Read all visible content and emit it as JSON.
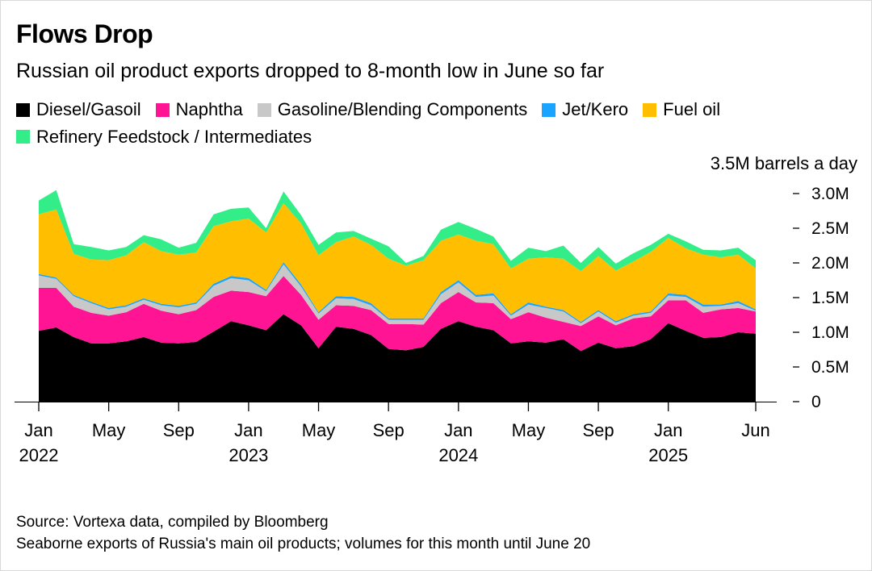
{
  "header": {
    "title": "Flows Drop",
    "subtitle": "Russian oil product exports dropped to 8-month low in June so far"
  },
  "unit_label": "3.5M barrels a day",
  "footer": {
    "source": "Source: Vortexa data, compiled by Bloomberg",
    "note": "Seaborne exports of Russia's main oil products; volumes for this month until June 20"
  },
  "chart_data": {
    "type": "area",
    "stacked": true,
    "x": [
      "2022-01",
      "2022-02",
      "2022-03",
      "2022-04",
      "2022-05",
      "2022-06",
      "2022-07",
      "2022-08",
      "2022-09",
      "2022-10",
      "2022-11",
      "2022-12",
      "2023-01",
      "2023-02",
      "2023-03",
      "2023-04",
      "2023-05",
      "2023-06",
      "2023-07",
      "2023-08",
      "2023-09",
      "2023-10",
      "2023-11",
      "2023-12",
      "2024-01",
      "2024-02",
      "2024-03",
      "2024-04",
      "2024-05",
      "2024-06",
      "2024-07",
      "2024-08",
      "2024-09",
      "2024-10",
      "2024-11",
      "2024-12",
      "2025-01",
      "2025-02",
      "2025-03",
      "2025-04",
      "2025-05",
      "2025-06"
    ],
    "x_tick_labels": [
      {
        "x": "2022-01",
        "line1": "Jan",
        "line2": "2022"
      },
      {
        "x": "2022-05",
        "line1": "May",
        "line2": ""
      },
      {
        "x": "2022-09",
        "line1": "Sep",
        "line2": ""
      },
      {
        "x": "2023-01",
        "line1": "Jan",
        "line2": "2023"
      },
      {
        "x": "2023-05",
        "line1": "May",
        "line2": ""
      },
      {
        "x": "2023-09",
        "line1": "Sep",
        "line2": ""
      },
      {
        "x": "2024-01",
        "line1": "Jan",
        "line2": "2024"
      },
      {
        "x": "2024-05",
        "line1": "May",
        "line2": ""
      },
      {
        "x": "2024-09",
        "line1": "Sep",
        "line2": ""
      },
      {
        "x": "2025-01",
        "line1": "Jan",
        "line2": "2025"
      },
      {
        "x": "2025-06",
        "line1": "Jun",
        "line2": ""
      }
    ],
    "y_ticks": [
      {
        "value": 0,
        "label": "0"
      },
      {
        "value": 0.5,
        "label": "0.5M"
      },
      {
        "value": 1.0,
        "label": "1.0M"
      },
      {
        "value": 1.5,
        "label": "1.5M"
      },
      {
        "value": 2.0,
        "label": "2.0M"
      },
      {
        "value": 2.5,
        "label": "2.5M"
      },
      {
        "value": 3.0,
        "label": "3.0M"
      }
    ],
    "ylim": [
      0,
      3.5
    ],
    "y_axis_side": "right",
    "grid": false,
    "legend_position": "top",
    "series": [
      {
        "name": "Diesel/Gasoil",
        "color": "#000000",
        "values": [
          1.02,
          1.07,
          0.93,
          0.84,
          0.84,
          0.87,
          0.93,
          0.85,
          0.84,
          0.86,
          1.01,
          1.16,
          1.1,
          1.03,
          1.26,
          1.1,
          0.77,
          1.08,
          1.05,
          0.96,
          0.76,
          0.74,
          0.79,
          1.05,
          1.16,
          1.08,
          1.03,
          0.84,
          0.87,
          0.85,
          0.9,
          0.73,
          0.85,
          0.77,
          0.8,
          0.9,
          1.13,
          1.02,
          0.92,
          0.93,
          1.0,
          0.98
        ]
      },
      {
        "name": "Naphtha",
        "color": "#ff1493",
        "values": [
          0.62,
          0.57,
          0.44,
          0.44,
          0.4,
          0.42,
          0.48,
          0.46,
          0.42,
          0.46,
          0.5,
          0.44,
          0.48,
          0.49,
          0.55,
          0.44,
          0.41,
          0.31,
          0.33,
          0.36,
          0.36,
          0.38,
          0.32,
          0.37,
          0.42,
          0.35,
          0.39,
          0.35,
          0.42,
          0.36,
          0.25,
          0.36,
          0.38,
          0.33,
          0.4,
          0.33,
          0.33,
          0.44,
          0.36,
          0.4,
          0.35,
          0.32
        ]
      },
      {
        "name": "Gasoline/Blending Components",
        "color": "#c8c8c8",
        "values": [
          0.18,
          0.13,
          0.15,
          0.14,
          0.09,
          0.08,
          0.06,
          0.08,
          0.1,
          0.09,
          0.16,
          0.18,
          0.17,
          0.07,
          0.17,
          0.12,
          0.09,
          0.1,
          0.1,
          0.07,
          0.06,
          0.06,
          0.07,
          0.13,
          0.14,
          0.08,
          0.11,
          0.05,
          0.11,
          0.14,
          0.15,
          0.04,
          0.07,
          0.04,
          0.04,
          0.05,
          0.07,
          0.05,
          0.09,
          0.05,
          0.07,
          0.01
        ]
      },
      {
        "name": "Jet/Kero",
        "color": "#1aa3ff",
        "values": [
          0.02,
          0.02,
          0.02,
          0.02,
          0.02,
          0.02,
          0.02,
          0.02,
          0.02,
          0.02,
          0.03,
          0.03,
          0.03,
          0.02,
          0.03,
          0.03,
          0.02,
          0.03,
          0.03,
          0.03,
          0.02,
          0.02,
          0.02,
          0.03,
          0.03,
          0.03,
          0.03,
          0.02,
          0.03,
          0.02,
          0.02,
          0.02,
          0.02,
          0.02,
          0.02,
          0.02,
          0.03,
          0.03,
          0.03,
          0.02,
          0.03,
          0.02
        ]
      },
      {
        "name": "Fuel oil",
        "color": "#ffbf00",
        "values": [
          0.86,
          0.98,
          0.59,
          0.61,
          0.69,
          0.72,
          0.81,
          0.76,
          0.74,
          0.72,
          0.83,
          0.79,
          0.86,
          0.83,
          0.85,
          0.88,
          0.82,
          0.78,
          0.87,
          0.84,
          0.86,
          0.76,
          0.84,
          0.74,
          0.66,
          0.78,
          0.71,
          0.66,
          0.63,
          0.71,
          0.74,
          0.73,
          0.78,
          0.73,
          0.76,
          0.86,
          0.8,
          0.67,
          0.72,
          0.68,
          0.67,
          0.59
        ]
      },
      {
        "name": "Refinery Feedstock / Intermediates",
        "color": "#33ee88",
        "values": [
          0.2,
          0.28,
          0.14,
          0.18,
          0.14,
          0.12,
          0.1,
          0.17,
          0.1,
          0.14,
          0.17,
          0.18,
          0.16,
          0.06,
          0.17,
          0.12,
          0.15,
          0.14,
          0.08,
          0.09,
          0.18,
          0.04,
          0.06,
          0.16,
          0.18,
          0.17,
          0.11,
          0.11,
          0.16,
          0.09,
          0.19,
          0.12,
          0.13,
          0.1,
          0.12,
          0.1,
          0.06,
          0.1,
          0.07,
          0.1,
          0.1,
          0.12
        ]
      }
    ]
  }
}
